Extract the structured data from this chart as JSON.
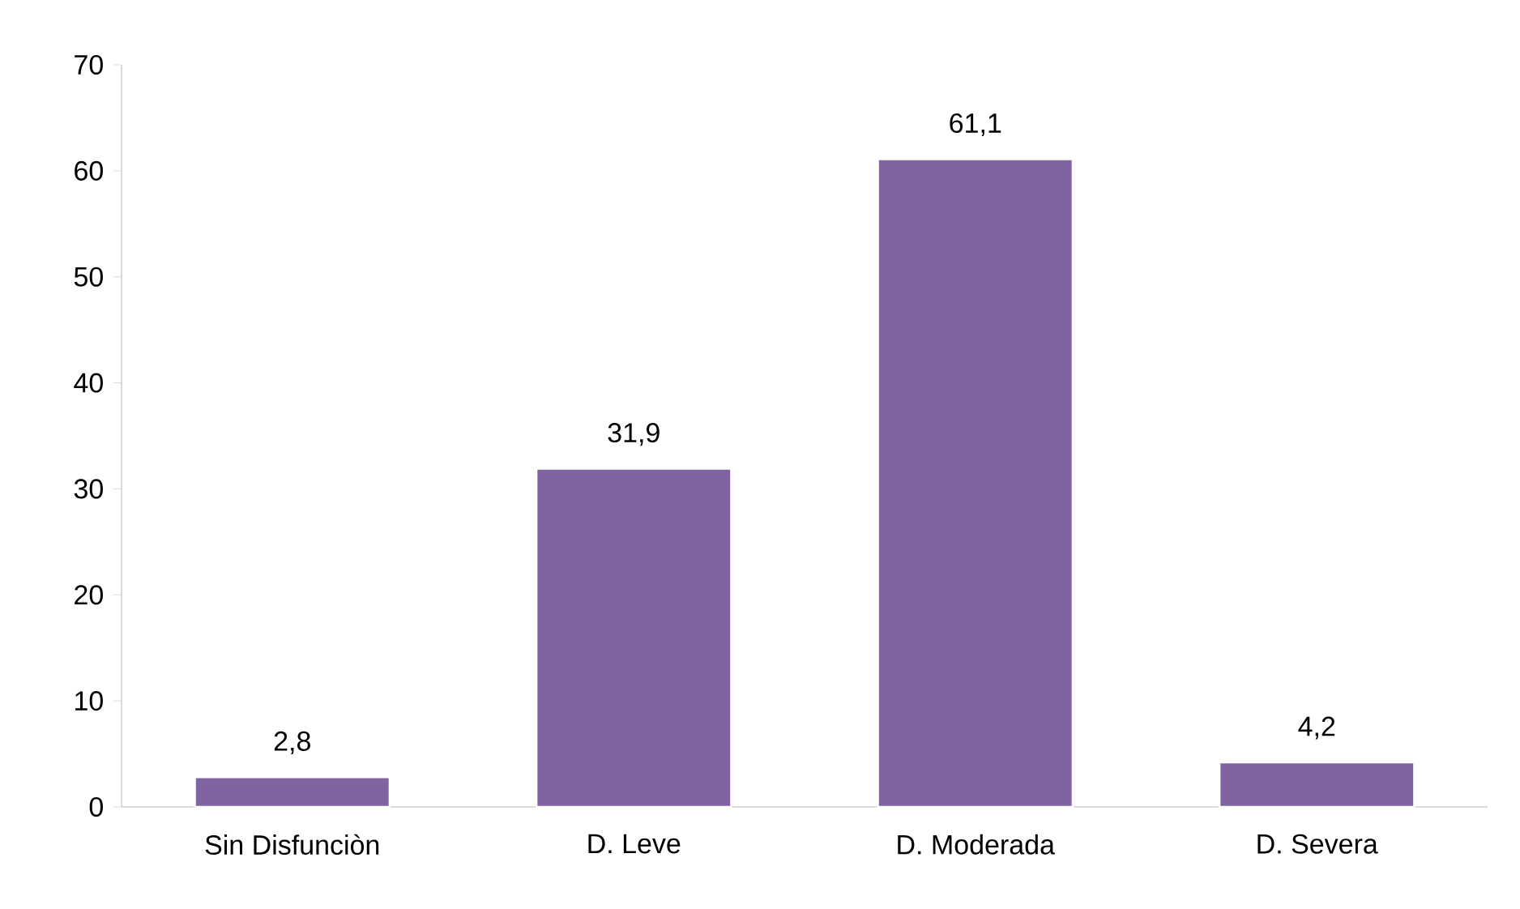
{
  "chart_data": {
    "type": "bar",
    "categories": [
      "Sin Disfunciòn",
      "D. Leve",
      "D. Moderada",
      "D. Severa"
    ],
    "values": [
      2.8,
      31.9,
      61.1,
      4.2
    ],
    "value_labels": [
      "2,8",
      "31,9",
      "61,1",
      "4,2"
    ],
    "color": "#8064a2",
    "ylim": [
      0,
      70
    ],
    "yticks": [
      0,
      10,
      20,
      30,
      40,
      50,
      60,
      70
    ]
  }
}
